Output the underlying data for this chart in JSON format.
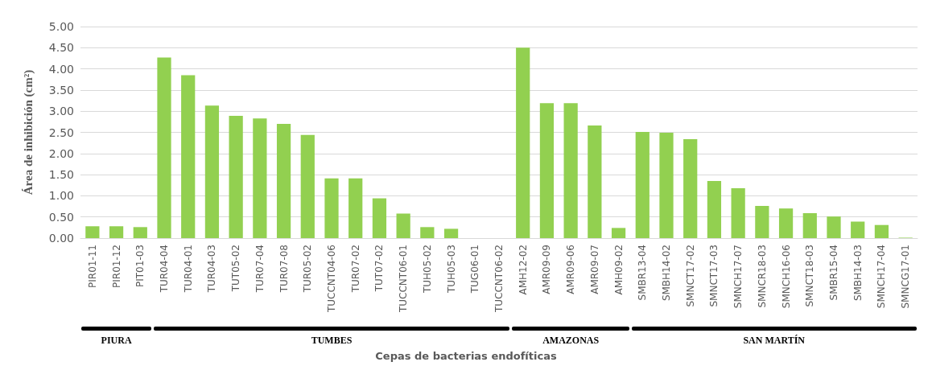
{
  "chart_data": {
    "type": "bar",
    "xlabel": "Cepas de bacterias endofíticas",
    "ylabel": "Área de inhibición (cm²)",
    "categories": [
      "PIR01-11",
      "PIR01-12",
      "PIT01-03",
      "TUR04-04",
      "TUR04-01",
      "TUR04-03",
      "TUT05-02",
      "TUR07-04",
      "TUR07-08",
      "TUR05-02",
      "TUCCNT04-06",
      "TUR07-02",
      "TUT07-02",
      "TUCCNT06-01",
      "TUH05-02",
      "TUH05-03",
      "TUG06-01",
      "TUCCNT06-02",
      "AMH12-02",
      "AMR09-09",
      "AMR09-06",
      "AMR09-07",
      "AMH09-02",
      "SMBR13-04",
      "SMBH14-02",
      "SMNCT17-02",
      "SMNCT17-03",
      "SMNCH17-07",
      "SMNCR18-03",
      "SMNCH16-06",
      "SMNCT18-03",
      "SMBR15-04",
      "SMBH14-03",
      "SMNCH17-04",
      "SMNCG17-01"
    ],
    "values": [
      0.28,
      0.28,
      0.26,
      4.27,
      3.85,
      3.13,
      2.89,
      2.83,
      2.7,
      2.44,
      1.41,
      1.41,
      0.94,
      0.58,
      0.26,
      0.22,
      0,
      0,
      4.5,
      3.19,
      3.19,
      2.66,
      0.24,
      2.51,
      2.49,
      2.34,
      1.35,
      1.18,
      0.76,
      0.7,
      0.59,
      0.51,
      0.39,
      0.31,
      0.01
    ],
    "color": "#92d050",
    "ylim": [
      0,
      5
    ],
    "yticks": [
      {
        "value": 0,
        "label": "0.00"
      },
      {
        "value": 0.5,
        "label": "0.50"
      },
      {
        "value": 1,
        "label": "1.00"
      },
      {
        "value": 1.5,
        "label": "1.50"
      },
      {
        "value": 2,
        "label": "2.00"
      },
      {
        "value": 2.5,
        "label": "2.50"
      },
      {
        "value": 3,
        "label": "3.00"
      },
      {
        "value": 3.5,
        "label": "3.50"
      },
      {
        "value": 4,
        "label": "4.00"
      },
      {
        "value": 4.5,
        "label": "4.50"
      },
      {
        "value": 5,
        "label": "5.00"
      }
    ],
    "grid": "y",
    "annotations": [
      "PIURA",
      "TUMBES",
      "AMAZONAS",
      "SAN MARTÍN"
    ]
  }
}
